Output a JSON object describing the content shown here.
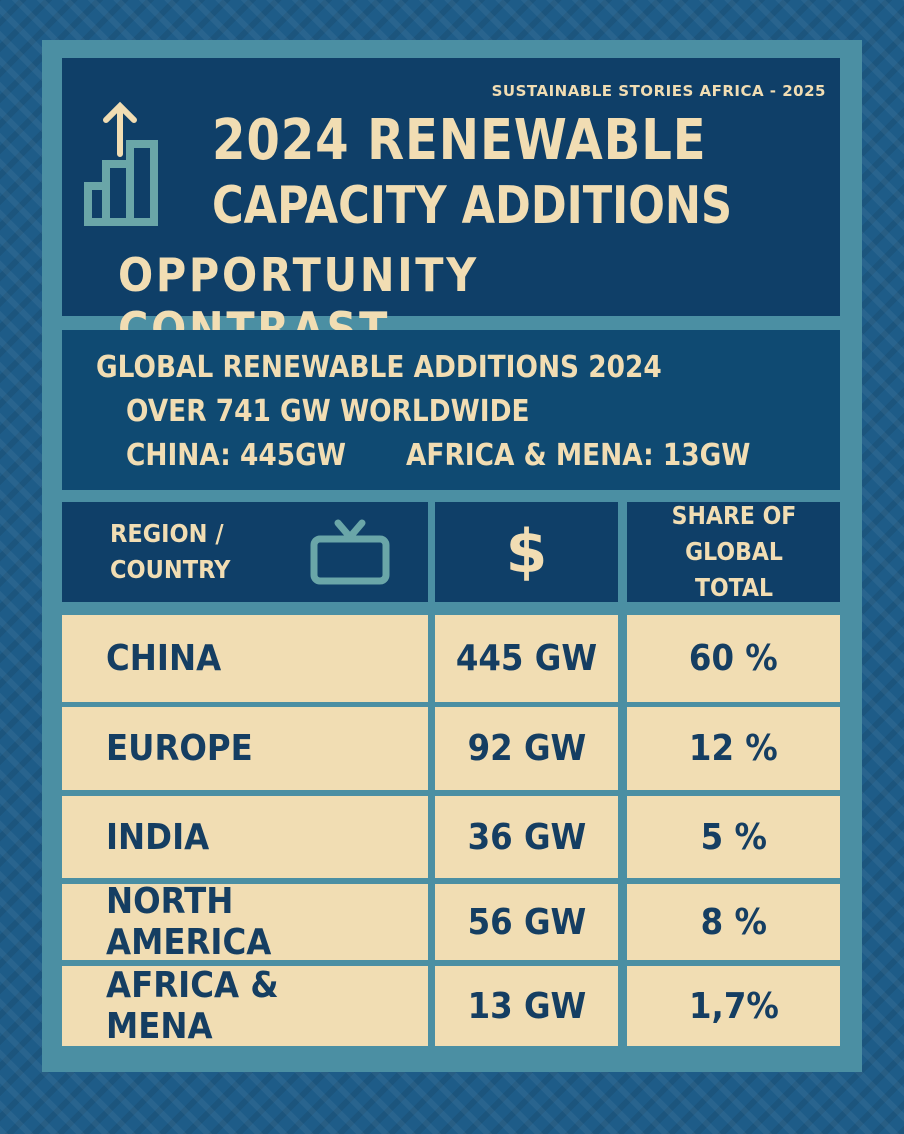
{
  "header": {
    "tagline": "SUSTAINABLE STORIES AFRICA - 2025",
    "title_line1": "2024 RENEWABLE",
    "title_line2": "CAPACITY ADDITIONS",
    "title_line3": "OPPORTUNITY CONTRAST",
    "icon": "bar-chart-up-arrow-icon"
  },
  "summary": {
    "line1": "GLOBAL RENEWABLE ADDITIONS 2024",
    "line2": "OVER 741 GW WORLDWIDE",
    "line3a": "CHINA: 445GW",
    "line3b": "AFRICA & MENA: 13GW"
  },
  "table": {
    "headers": [
      {
        "label": "REGION / COUNTRY",
        "icon": "tv-icon"
      },
      {
        "label": "$",
        "icon": "dollar-icon"
      },
      {
        "label": "SHARE OF GLOBAL TOTAL"
      }
    ],
    "rows": [
      {
        "region": "CHINA",
        "capacity": "445 GW",
        "share": "60 %"
      },
      {
        "region": "EUROPE",
        "capacity": "92 GW",
        "share": "12 %"
      },
      {
        "region": "INDIA",
        "capacity": "36 GW",
        "share": "5 %"
      },
      {
        "region": "NORTH AMERICA",
        "capacity": "56 GW",
        "share": "8 %"
      },
      {
        "region": "AFRICA & MENA",
        "capacity": "13 GW",
        "share": "1,7%"
      }
    ]
  },
  "colors": {
    "navy": "#0f3f68",
    "cream": "#f1ddb3",
    "teal": "#4b8fa3",
    "text_dark": "#153e62"
  }
}
